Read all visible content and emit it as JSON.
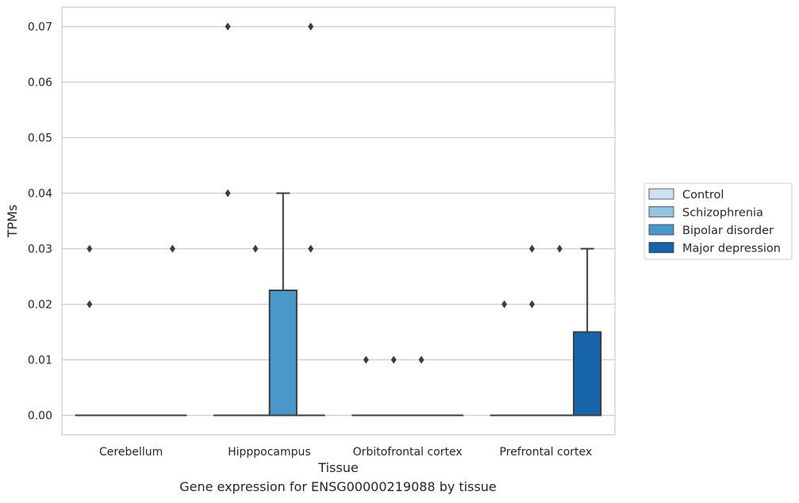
{
  "chart_data": {
    "type": "box",
    "caption": "Gene expression for ENSG00000219088 by tissue",
    "xlabel": "Tissue",
    "ylabel": "TPMs",
    "categories": [
      "Cerebellum",
      "Hipppocampus",
      "Orbitofrontal cortex",
      "Prefrontal cortex"
    ],
    "ylim": [
      -0.0035,
      0.0735
    ],
    "yticks": [
      0.0,
      0.01,
      0.02,
      0.03,
      0.04,
      0.05,
      0.06,
      0.07
    ],
    "ytick_labels": [
      "0.00",
      "0.01",
      "0.02",
      "0.03",
      "0.04",
      "0.05",
      "0.06",
      "0.07"
    ],
    "grid": "horizontal",
    "legend_position": "right",
    "series": [
      {
        "name": "Control",
        "color": "#d0e1f2",
        "boxes": [
          {
            "q1": 0,
            "median": 0,
            "q3": 0,
            "whisker_low": 0,
            "whisker_high": 0,
            "outliers": [
              0.02,
              0.03
            ]
          },
          {
            "q1": 0,
            "median": 0,
            "q3": 0,
            "whisker_low": 0,
            "whisker_high": 0,
            "outliers": [
              0.04,
              0.07
            ]
          },
          {
            "q1": 0,
            "median": 0,
            "q3": 0,
            "whisker_low": 0,
            "whisker_high": 0,
            "outliers": [
              0.01
            ]
          },
          {
            "q1": 0,
            "median": 0,
            "q3": 0,
            "whisker_low": 0,
            "whisker_high": 0,
            "outliers": [
              0.02
            ]
          }
        ]
      },
      {
        "name": "Schizophrenia",
        "color": "#94c4df",
        "boxes": [
          {
            "q1": 0,
            "median": 0,
            "q3": 0,
            "whisker_low": 0,
            "whisker_high": 0,
            "outliers": []
          },
          {
            "q1": 0,
            "median": 0,
            "q3": 0,
            "whisker_low": 0,
            "whisker_high": 0,
            "outliers": [
              0.03
            ]
          },
          {
            "q1": 0,
            "median": 0,
            "q3": 0,
            "whisker_low": 0,
            "whisker_high": 0,
            "outliers": [
              0.01
            ]
          },
          {
            "q1": 0,
            "median": 0,
            "q3": 0,
            "whisker_low": 0,
            "whisker_high": 0,
            "outliers": [
              0.02,
              0.03
            ]
          }
        ]
      },
      {
        "name": "Bipolar disorder",
        "color": "#4a98c9",
        "boxes": [
          {
            "q1": 0,
            "median": 0,
            "q3": 0,
            "whisker_low": 0,
            "whisker_high": 0,
            "outliers": []
          },
          {
            "q1": 0,
            "median": 0,
            "q3": 0.0225,
            "whisker_low": 0,
            "whisker_high": 0.04,
            "outliers": []
          },
          {
            "q1": 0,
            "median": 0,
            "q3": 0,
            "whisker_low": 0,
            "whisker_high": 0,
            "outliers": [
              0.01
            ]
          },
          {
            "q1": 0,
            "median": 0,
            "q3": 0,
            "whisker_low": 0,
            "whisker_high": 0,
            "outliers": [
              0.03
            ]
          }
        ]
      },
      {
        "name": "Major depression",
        "color": "#1764ab",
        "boxes": [
          {
            "q1": 0,
            "median": 0,
            "q3": 0,
            "whisker_low": 0,
            "whisker_high": 0,
            "outliers": [
              0.03
            ]
          },
          {
            "q1": 0,
            "median": 0,
            "q3": 0,
            "whisker_low": 0,
            "whisker_high": 0,
            "outliers": [
              0.03,
              0.07
            ]
          },
          {
            "q1": 0,
            "median": 0,
            "q3": 0,
            "whisker_low": 0,
            "whisker_high": 0,
            "outliers": []
          },
          {
            "q1": 0,
            "median": 0,
            "q3": 0.015,
            "whisker_low": 0,
            "whisker_high": 0.03,
            "outliers": []
          }
        ]
      }
    ]
  }
}
